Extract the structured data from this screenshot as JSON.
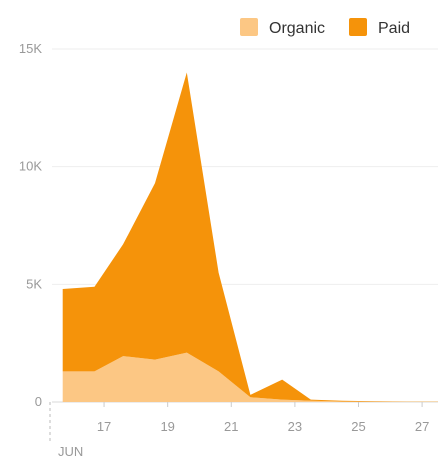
{
  "chart_data": {
    "type": "area",
    "stacked": true,
    "x": [
      15.7,
      16.7,
      17.6,
      18.6,
      19.6,
      20.6,
      21.6,
      22.6,
      23.5,
      24.5,
      25.5,
      26.5,
      27.5
    ],
    "x_ticks": [
      {
        "value": 17,
        "label": "17"
      },
      {
        "value": 19,
        "label": "19"
      },
      {
        "value": 21,
        "label": "21"
      },
      {
        "value": 23,
        "label": "23"
      },
      {
        "value": 25,
        "label": "25"
      },
      {
        "value": 27,
        "label": "27"
      }
    ],
    "x_month_label": "JUN",
    "xlim": [
      15.3,
      27.5
    ],
    "y_ticks": [
      {
        "value": 0,
        "label": "0"
      },
      {
        "value": 5000,
        "label": "5K"
      },
      {
        "value": 10000,
        "label": "10K"
      },
      {
        "value": 15000,
        "label": "15K"
      }
    ],
    "ylim": [
      0,
      15000
    ],
    "grid": "horizontal",
    "legend_position": "top-right",
    "series": [
      {
        "name": "Organic",
        "color": "#fcc784",
        "values": [
          1300,
          1300,
          1950,
          1800,
          2100,
          1300,
          200,
          100,
          50,
          20,
          10,
          5,
          5
        ]
      },
      {
        "name": "Paid",
        "color": "#f5930a",
        "values": [
          3500,
          3600,
          4750,
          7500,
          11900,
          4200,
          100,
          850,
          50,
          30,
          20,
          10,
          10
        ]
      }
    ]
  }
}
